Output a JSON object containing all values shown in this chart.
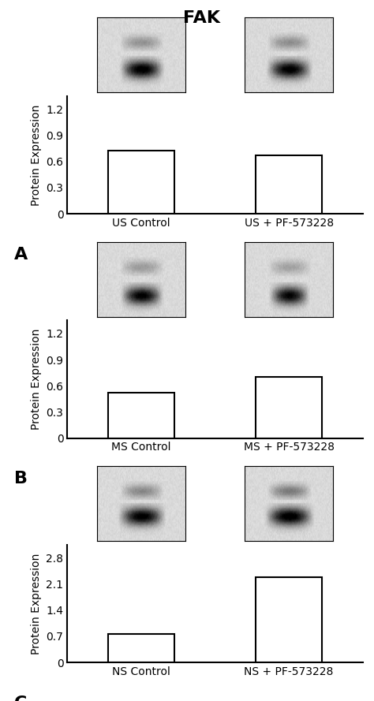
{
  "title": "FAK",
  "title_fontsize": 16,
  "title_fontweight": "bold",
  "panels": [
    {
      "label": "A",
      "categories": [
        "US Control",
        "US + PF-573228"
      ],
      "values": [
        0.72,
        0.67
      ],
      "ylim": [
        0,
        1.35
      ],
      "yticks": [
        0,
        0.3,
        0.6,
        0.9,
        1.2
      ],
      "ylabel": "Protein Expression"
    },
    {
      "label": "B",
      "categories": [
        "MS Control",
        "MS + PF-573228"
      ],
      "values": [
        0.52,
        0.7
      ],
      "ylim": [
        0,
        1.35
      ],
      "yticks": [
        0,
        0.3,
        0.6,
        0.9,
        1.2
      ],
      "ylabel": "Protein Expression"
    },
    {
      "label": "C",
      "categories": [
        "NS Control",
        "NS + PF-573228"
      ],
      "values": [
        0.77,
        2.27
      ],
      "ylim": [
        0,
        3.15
      ],
      "yticks": [
        0,
        0.7,
        1.4,
        2.1,
        2.8
      ],
      "ylabel": "Protein Expression"
    }
  ],
  "bar_color": "white",
  "bar_edgecolor": "black",
  "bar_linewidth": 1.5,
  "bar_width": 0.45,
  "tick_fontsize": 10,
  "ylabel_fontsize": 10,
  "panel_label_fontsize": 16,
  "panel_label_fontweight": "bold",
  "background_color": "white"
}
